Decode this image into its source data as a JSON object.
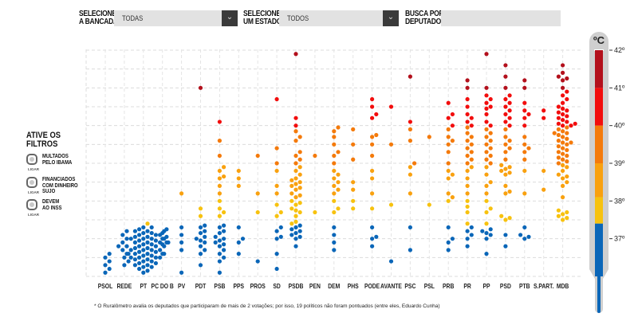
{
  "filters_bar": {
    "bancada_label_1": "SELECIONE",
    "bancada_label_2": "A BANCADA",
    "bancada_value": "TODAS",
    "estado_label_1": "SELECIONE",
    "estado_label_2": "UM ESTADO",
    "estado_value": "TODOS",
    "busca_label_1": "BUSCA POR",
    "busca_label_2": "DEPUTADO",
    "busca_value": "",
    "dropdown_icon": "chevron-down-icon"
  },
  "side_filters": {
    "title_1": "ATIVE OS",
    "title_2": "FILTROS",
    "items": [
      {
        "lines": [
          "MULTADOS",
          "PELO IBAMA"
        ],
        "toggle_label": "LIGAR",
        "on": false
      },
      {
        "lines": [
          "FINANCIADOS",
          "COM DINHEIRO",
          "SUJO"
        ],
        "toggle_label": "LIGAR",
        "on": false
      },
      {
        "lines": [
          "DEVEM",
          "AO INSS"
        ],
        "toggle_label": "LIGAR",
        "on": false
      }
    ]
  },
  "thermometer": {
    "unit": "ºC",
    "ticks": [
      "42º",
      "41º",
      "40º",
      "39º",
      "38º",
      "37º"
    ],
    "bands": [
      {
        "from": 41,
        "to": 42,
        "color": "#b3101c"
      },
      {
        "from": 40,
        "to": 41,
        "color": "#f20d0d"
      },
      {
        "from": 39,
        "to": 40,
        "color": "#f47a0b"
      },
      {
        "from": 38.1,
        "to": 39,
        "color": "#f9a10f"
      },
      {
        "from": 37.4,
        "to": 38.1,
        "color": "#f7c20f"
      },
      {
        "from": 35.0,
        "to": 37.4,
        "color": "#0a66b8"
      }
    ]
  },
  "footnote": "* O Ruralômetro avalia os deputados que participaram de mais de 2 votações; por isso, 19 políticos não foram pontuados (entre eles, Eduardo Cunha)",
  "chart_data": {
    "type": "scatter",
    "title": "",
    "xlabel": "",
    "ylabel": "ºC",
    "ylim": [
      36,
      42
    ],
    "grid": true,
    "categories": [
      "PSOL",
      "REDE",
      "PT",
      "PC DO B",
      "PV",
      "PDT",
      "PSB",
      "PPS",
      "PROS",
      "SD",
      "PSDB",
      "PEN",
      "DEM",
      "PHS",
      "PODE",
      "AVANTE",
      "PSC",
      "PSL",
      "PRB",
      "PR",
      "PP",
      "PSD",
      "PTB",
      "S.PART.",
      "MDB"
    ],
    "series": [
      {
        "party": "PSOL",
        "values": [
          36.1,
          36.2,
          36.3,
          36.4,
          36.5,
          36.6
        ]
      },
      {
        "party": "REDE",
        "values": [
          36.3,
          36.4,
          36.5,
          36.6
        ]
      },
      {
        "party": "PT",
        "values": [
          36.1,
          36.15,
          36.2,
          36.25,
          36.3,
          36.3,
          36.35,
          36.4,
          36.4,
          36.45,
          36.5,
          36.5,
          36.5,
          36.55,
          36.6,
          36.6,
          36.6,
          36.65,
          36.7,
          36.7,
          36.7,
          36.7,
          36.75,
          36.8,
          36.8,
          36.8,
          36.8,
          36.85,
          36.9,
          36.9,
          36.9,
          36.9,
          36.95,
          37.0,
          37.0,
          37.0,
          37.0,
          37.05,
          37.1,
          37.1,
          37.1,
          37.15,
          37.2,
          37.2,
          37.2,
          37.25,
          37.3,
          37.3,
          37.4,
          37.0,
          36.6,
          36.9,
          37.1,
          36.7,
          36.8,
          36.5,
          37.2,
          36.95,
          36.85,
          36.75,
          37.05,
          36.65,
          36.55,
          36.45,
          37.15,
          36.35,
          36.25
        ]
      },
      {
        "party": "PC DO B",
        "values": [
          36.6,
          36.85,
          36.9,
          37.0,
          37.05,
          37.15,
          37.25
        ]
      },
      {
        "party": "PV",
        "values": [
          36.1,
          36.7,
          36.9,
          37.1,
          37.3,
          38.2
        ]
      },
      {
        "party": "PDT",
        "values": [
          36.3,
          36.6,
          36.7,
          36.8,
          36.9,
          36.95,
          37.0,
          37.05,
          37.15,
          37.2,
          37.3,
          37.35,
          37.6,
          37.8,
          41.0
        ]
      },
      {
        "party": "PSB",
        "values": [
          36.1,
          36.4,
          36.5,
          36.6,
          36.7,
          36.8,
          36.85,
          36.9,
          36.95,
          37.0,
          37.05,
          37.15,
          37.2,
          37.3,
          37.35,
          37.6,
          37.7,
          37.8,
          38.0,
          38.2,
          38.4,
          38.6,
          38.65,
          38.8,
          38.9,
          39.2,
          39.6,
          40.1
        ]
      },
      {
        "party": "PPS",
        "values": [
          36.6,
          36.9,
          37.0,
          37.3,
          38.4,
          38.6,
          38.8
        ]
      },
      {
        "party": "PROS",
        "values": [
          36.4,
          37.7,
          38.2,
          39.2
        ]
      },
      {
        "party": "SD",
        "values": [
          36.2,
          36.6,
          37.0,
          37.05,
          37.2,
          37.3,
          37.6,
          37.7,
          37.9,
          38.2,
          38.4,
          38.8,
          39.0,
          39.4,
          40.7
        ]
      },
      {
        "party": "PSDB",
        "values": [
          36.8,
          37.0,
          37.05,
          37.1,
          37.15,
          37.2,
          37.25,
          37.3,
          37.35,
          37.4,
          37.45,
          37.6,
          37.7,
          37.8,
          37.9,
          38.0,
          38.1,
          38.2,
          38.3,
          38.35,
          38.4,
          38.5,
          38.6,
          38.7,
          38.8,
          38.9,
          39.0,
          39.1,
          39.3,
          39.6,
          39.85,
          40.0,
          39.2,
          38.45,
          38.55,
          38.15,
          37.95,
          37.75,
          39.7,
          40.2,
          41.9
        ]
      },
      {
        "party": "PEN",
        "values": [
          37.7,
          39.2
        ]
      },
      {
        "party": "DEM",
        "values": [
          36.7,
          36.9,
          37.1,
          37.3,
          37.7,
          37.8,
          38.0,
          38.2,
          38.3,
          38.4,
          38.5,
          38.6,
          38.7,
          38.8,
          39.0,
          39.2,
          39.3,
          39.5,
          39.7,
          39.85,
          39.95
        ]
      },
      {
        "party": "PHS",
        "values": [
          37.8,
          38.0,
          38.3,
          38.5,
          39.1,
          39.5,
          39.9
        ]
      },
      {
        "party": "PODE",
        "values": [
          36.8,
          37.0,
          37.05,
          37.3,
          37.8,
          38.2,
          38.6,
          38.8,
          39.2,
          39.5,
          39.7,
          39.75,
          40.2,
          40.3,
          40.5,
          40.7
        ]
      },
      {
        "party": "AVANTE",
        "values": [
          36.4,
          37.9,
          39.5,
          40.5
        ]
      },
      {
        "party": "PSC",
        "values": [
          36.7,
          37.3,
          38.2,
          38.7,
          38.9,
          39.0,
          39.6,
          39.9,
          40.1,
          41.3
        ]
      },
      {
        "party": "PSL",
        "values": [
          37.9,
          39.7
        ]
      },
      {
        "party": "PRB",
        "values": [
          36.7,
          36.9,
          37.0,
          37.3,
          38.0,
          38.1,
          38.2,
          38.6,
          38.7,
          38.8,
          39.0,
          39.3,
          39.5,
          39.6,
          39.7,
          39.9,
          40.0,
          40.2,
          40.3,
          40.6
        ]
      },
      {
        "party": "PR",
        "values": [
          36.8,
          37.0,
          37.1,
          37.2,
          37.3,
          37.4,
          37.7,
          37.85,
          38.0,
          38.2,
          38.4,
          38.6,
          38.8,
          38.9,
          39.0,
          39.1,
          39.2,
          39.3,
          39.4,
          39.5,
          39.6,
          39.7,
          39.8,
          39.95,
          40.0,
          40.1,
          40.2,
          40.3,
          40.5,
          40.7,
          41.0,
          41.2
        ]
      },
      {
        "party": "PP",
        "values": [
          36.6,
          37.0,
          37.1,
          37.15,
          37.2,
          37.25,
          37.4,
          37.7,
          37.8,
          38.0,
          38.2,
          38.4,
          38.5,
          38.7,
          38.9,
          39.0,
          39.1,
          39.2,
          39.3,
          39.4,
          39.5,
          39.6,
          39.7,
          39.8,
          39.9,
          40.0,
          40.1,
          40.3,
          40.45,
          40.5,
          40.6,
          40.7,
          40.8,
          41.0,
          41.9
        ]
      },
      {
        "party": "PSD",
        "values": [
          36.8,
          37.1,
          37.5,
          37.55,
          37.6,
          38.2,
          38.25,
          38.4,
          38.7,
          38.75,
          38.8,
          38.85,
          38.9,
          38.95,
          39.1,
          39.3,
          39.4,
          39.5,
          39.6,
          39.7,
          39.9,
          40.0,
          40.1,
          40.2,
          40.3,
          40.4,
          40.5,
          40.6,
          40.7,
          40.8,
          41.0,
          41.3,
          41.6
        ]
      },
      {
        "party": "PTB",
        "values": [
          37.0,
          37.05,
          37.1,
          37.3,
          38.2,
          38.8,
          39.1,
          39.3,
          39.4,
          39.5,
          39.7,
          40.0,
          40.2,
          40.3,
          40.4,
          40.6,
          41.0,
          41.2
        ]
      },
      {
        "party": "S.PART.",
        "values": [
          38.3,
          38.8,
          40.2,
          40.4
        ]
      },
      {
        "party": "MDB",
        "values": [
          37.5,
          37.55,
          37.6,
          37.65,
          37.75,
          37.7,
          38.1,
          38.4,
          38.5,
          38.6,
          38.65,
          38.7,
          38.8,
          38.9,
          39.0,
          39.1,
          39.2,
          39.3,
          39.35,
          39.4,
          39.45,
          39.5,
          39.55,
          39.6,
          39.65,
          39.7,
          39.75,
          39.8,
          39.85,
          39.9,
          39.95,
          40.0,
          40.0,
          40.05,
          40.1,
          40.15,
          40.2,
          40.25,
          40.3,
          40.35,
          40.4,
          40.5,
          40.6,
          40.7,
          40.8,
          40.9,
          41.0,
          41.2,
          41.25,
          41.3,
          41.4,
          41.6,
          39.25,
          39.05,
          38.95,
          39.15,
          39.55,
          39.8,
          40.05,
          40.45
        ]
      }
    ]
  }
}
